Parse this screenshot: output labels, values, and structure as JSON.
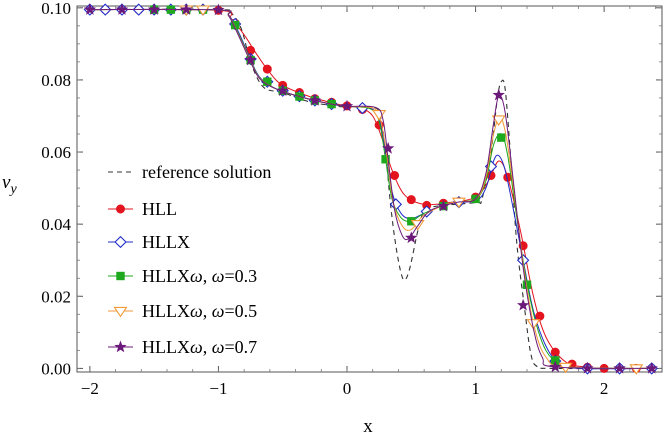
{
  "chart_data": {
    "type": "line",
    "title": "",
    "xlabel": "x",
    "ylabel": "v",
    "ylabel_sub": "y",
    "xlim": [
      -2.1,
      2.45
    ],
    "ylim": [
      -0.001,
      0.1005
    ],
    "xticks": [
      -2,
      -1,
      0,
      1,
      2
    ],
    "xtick_labels": [
      "−2",
      "−1",
      "0",
      "1",
      "2"
    ],
    "yticks": [
      0.0,
      0.02,
      0.04,
      0.06,
      0.08,
      0.1
    ],
    "ytick_labels": [
      "0.00",
      "0.02",
      "0.04",
      "0.06",
      "0.08",
      "0.10"
    ],
    "legend_position": "left",
    "series": [
      {
        "name": "reference solution",
        "color": "#333333",
        "marker": "none",
        "dash": true,
        "points": [
          [
            -2.0,
            0.0995
          ],
          [
            -1.0,
            0.0995
          ],
          [
            -0.9,
            0.0985
          ],
          [
            -0.82,
            0.094
          ],
          [
            -0.75,
            0.085
          ],
          [
            -0.65,
            0.078
          ],
          [
            -0.5,
            0.0765
          ],
          [
            -0.3,
            0.074
          ],
          [
            -0.1,
            0.0728
          ],
          [
            0.0,
            0.0725
          ],
          [
            0.2,
            0.0725
          ],
          [
            0.26,
            0.07
          ],
          [
            0.3,
            0.06
          ],
          [
            0.34,
            0.045
          ],
          [
            0.38,
            0.034
          ],
          [
            0.42,
            0.0265
          ],
          [
            0.45,
            0.0245
          ],
          [
            0.49,
            0.028
          ],
          [
            0.55,
            0.038
          ],
          [
            0.6,
            0.0435
          ],
          [
            0.7,
            0.045
          ],
          [
            1.0,
            0.046
          ],
          [
            1.05,
            0.047
          ],
          [
            1.12,
            0.06
          ],
          [
            1.17,
            0.075
          ],
          [
            1.2,
            0.0795
          ],
          [
            1.23,
            0.0775
          ],
          [
            1.27,
            0.06
          ],
          [
            1.32,
            0.035
          ],
          [
            1.38,
            0.017
          ],
          [
            1.43,
            0.004
          ],
          [
            1.48,
            0.0005
          ],
          [
            1.6,
            0.0
          ],
          [
            2.4,
            0.0
          ]
        ]
      },
      {
        "name": "HLL",
        "color": "#e3141e",
        "marker": "circle",
        "dash": false,
        "points": [
          [
            -2.0,
            0.0995
          ],
          [
            -1.0,
            0.0993
          ],
          [
            -0.9,
            0.097
          ],
          [
            -0.8,
            0.0925
          ],
          [
            -0.7,
            0.087
          ],
          [
            -0.6,
            0.082
          ],
          [
            -0.5,
            0.0785
          ],
          [
            -0.3,
            0.0755
          ],
          [
            -0.1,
            0.0735
          ],
          [
            0.0,
            0.0728
          ],
          [
            0.1,
            0.0722
          ],
          [
            0.2,
            0.07
          ],
          [
            0.28,
            0.063
          ],
          [
            0.35,
            0.055
          ],
          [
            0.45,
            0.048
          ],
          [
            0.6,
            0.0455
          ],
          [
            0.8,
            0.046
          ],
          [
            1.0,
            0.0475
          ],
          [
            1.1,
            0.052
          ],
          [
            1.18,
            0.0575
          ],
          [
            1.25,
            0.053
          ],
          [
            1.35,
            0.038
          ],
          [
            1.45,
            0.02
          ],
          [
            1.55,
            0.0085
          ],
          [
            1.7,
            0.0018
          ],
          [
            1.85,
            0.0004
          ],
          [
            2.0,
            0.0
          ],
          [
            2.4,
            0.0
          ]
        ],
        "markers": [
          [
            -2.0,
            0.0995
          ],
          [
            -1.88,
            0.0995
          ],
          [
            -1.75,
            0.0995
          ],
          [
            -1.62,
            0.0995
          ],
          [
            -1.5,
            0.0995
          ],
          [
            -1.37,
            0.0995
          ],
          [
            -1.25,
            0.0995
          ],
          [
            -1.12,
            0.0995
          ],
          [
            -1.0,
            0.0993
          ],
          [
            -0.87,
            0.0957
          ],
          [
            -0.75,
            0.0882
          ],
          [
            -0.62,
            0.083
          ],
          [
            -0.5,
            0.0785
          ],
          [
            -0.37,
            0.0765
          ],
          [
            -0.25,
            0.0748
          ],
          [
            -0.12,
            0.0738
          ],
          [
            0.0,
            0.0728
          ],
          [
            0.12,
            0.0718
          ],
          [
            0.25,
            0.0675
          ],
          [
            0.37,
            0.0535
          ],
          [
            0.5,
            0.0468
          ],
          [
            0.62,
            0.0452
          ],
          [
            0.75,
            0.0458
          ],
          [
            0.87,
            0.0463
          ],
          [
            1.0,
            0.0475
          ],
          [
            1.12,
            0.0535
          ],
          [
            1.25,
            0.053
          ],
          [
            1.37,
            0.034
          ],
          [
            1.5,
            0.0145
          ],
          [
            1.62,
            0.0045
          ],
          [
            1.75,
            0.0012
          ],
          [
            1.87,
            0.0003
          ],
          [
            2.0,
            0.0
          ],
          [
            2.12,
            0.0
          ],
          [
            2.25,
            0.0
          ],
          [
            2.37,
            0.0
          ]
        ]
      },
      {
        "name": "HLLX",
        "color": "#1f2cc7",
        "marker": "diamond",
        "dash": false,
        "points": [
          [
            -2.0,
            0.0995
          ],
          [
            -1.0,
            0.0994
          ],
          [
            -0.92,
            0.098
          ],
          [
            -0.84,
            0.093
          ],
          [
            -0.76,
            0.0865
          ],
          [
            -0.68,
            0.0808
          ],
          [
            -0.55,
            0.0775
          ],
          [
            -0.35,
            0.0752
          ],
          [
            -0.15,
            0.0735
          ],
          [
            0.0,
            0.0727
          ],
          [
            0.18,
            0.0722
          ],
          [
            0.25,
            0.069
          ],
          [
            0.3,
            0.06
          ],
          [
            0.35,
            0.049
          ],
          [
            0.42,
            0.043
          ],
          [
            0.5,
            0.0415
          ],
          [
            0.6,
            0.043
          ],
          [
            0.8,
            0.0458
          ],
          [
            1.0,
            0.0465
          ],
          [
            1.08,
            0.05
          ],
          [
            1.14,
            0.0575
          ],
          [
            1.18,
            0.059
          ],
          [
            1.23,
            0.055
          ],
          [
            1.3,
            0.043
          ],
          [
            1.37,
            0.03
          ],
          [
            1.45,
            0.016
          ],
          [
            1.55,
            0.006
          ],
          [
            1.65,
            0.0015
          ],
          [
            1.8,
            0.0
          ],
          [
            2.4,
            0.0
          ]
        ],
        "markers": [
          [
            -2.0,
            0.0995
          ],
          [
            -1.88,
            0.0995
          ],
          [
            -1.75,
            0.0995
          ],
          [
            -1.62,
            0.0995
          ],
          [
            -1.5,
            0.0995
          ],
          [
            -1.37,
            0.0995
          ],
          [
            -1.25,
            0.0995
          ],
          [
            -1.12,
            0.0995
          ],
          [
            -0.87,
            0.0955
          ],
          [
            -0.75,
            0.0858
          ],
          [
            -0.62,
            0.0795
          ],
          [
            -0.5,
            0.077
          ],
          [
            -0.37,
            0.0755
          ],
          [
            -0.25,
            0.0743
          ],
          [
            -0.12,
            0.0733
          ],
          [
            0.12,
            0.0722
          ],
          [
            0.38,
            0.0455
          ],
          [
            0.62,
            0.0435
          ],
          [
            0.87,
            0.0461
          ],
          [
            1.12,
            0.056
          ],
          [
            1.37,
            0.03
          ],
          [
            1.62,
            0.002
          ],
          [
            1.87,
            0.0
          ],
          [
            2.12,
            0.0
          ],
          [
            2.37,
            0.0
          ]
        ]
      },
      {
        "name": "HLLXω, ω=0.3",
        "color": "#1da81d",
        "marker": "square",
        "dash": false,
        "points": [
          [
            -2.0,
            0.0995
          ],
          [
            -1.0,
            0.0994
          ],
          [
            -0.92,
            0.0978
          ],
          [
            -0.84,
            0.0925
          ],
          [
            -0.76,
            0.0862
          ],
          [
            -0.68,
            0.0806
          ],
          [
            -0.55,
            0.0775
          ],
          [
            -0.35,
            0.0752
          ],
          [
            -0.15,
            0.0735
          ],
          [
            0.0,
            0.0727
          ],
          [
            0.18,
            0.072
          ],
          [
            0.25,
            0.0685
          ],
          [
            0.3,
            0.058
          ],
          [
            0.35,
            0.047
          ],
          [
            0.42,
            0.0418
          ],
          [
            0.5,
            0.0408
          ],
          [
            0.6,
            0.043
          ],
          [
            0.8,
            0.0458
          ],
          [
            1.0,
            0.047
          ],
          [
            1.08,
            0.052
          ],
          [
            1.14,
            0.062
          ],
          [
            1.2,
            0.065
          ],
          [
            1.25,
            0.059
          ],
          [
            1.32,
            0.042
          ],
          [
            1.4,
            0.0235
          ],
          [
            1.5,
            0.009
          ],
          [
            1.6,
            0.0025
          ],
          [
            1.75,
            0.0003
          ],
          [
            2.4,
            0.0
          ]
        ],
        "markers": [
          [
            -1.5,
            0.0995
          ],
          [
            -1.37,
            0.0995
          ],
          [
            -1.25,
            0.0995
          ],
          [
            -1.12,
            0.0995
          ],
          [
            -0.87,
            0.0952
          ],
          [
            -0.75,
            0.0855
          ],
          [
            -0.62,
            0.0795
          ],
          [
            -0.5,
            0.077
          ],
          [
            -0.37,
            0.0754
          ],
          [
            -0.25,
            0.0743
          ],
          [
            -0.12,
            0.0733
          ],
          [
            0.3,
            0.058
          ],
          [
            0.5,
            0.0408
          ],
          [
            0.75,
            0.045
          ],
          [
            1.0,
            0.047
          ],
          [
            1.2,
            0.064
          ],
          [
            1.4,
            0.0232
          ],
          [
            1.62,
            0.0022
          ]
        ]
      },
      {
        "name": "HLLXω, ω=0.5",
        "color": "#f29a38",
        "marker": "triangle-down",
        "dash": false,
        "points": [
          [
            -2.0,
            0.0995
          ],
          [
            -1.0,
            0.0994
          ],
          [
            -0.92,
            0.0978
          ],
          [
            -0.84,
            0.0922
          ],
          [
            -0.76,
            0.086
          ],
          [
            -0.68,
            0.0805
          ],
          [
            -0.55,
            0.0775
          ],
          [
            -0.35,
            0.0752
          ],
          [
            -0.15,
            0.0735
          ],
          [
            0.0,
            0.0727
          ],
          [
            0.2,
            0.0722
          ],
          [
            0.26,
            0.069
          ],
          [
            0.31,
            0.059
          ],
          [
            0.36,
            0.046
          ],
          [
            0.43,
            0.0395
          ],
          [
            0.5,
            0.0385
          ],
          [
            0.6,
            0.0425
          ],
          [
            0.8,
            0.0458
          ],
          [
            1.0,
            0.047
          ],
          [
            1.08,
            0.053
          ],
          [
            1.14,
            0.065
          ],
          [
            1.19,
            0.0695
          ],
          [
            1.24,
            0.064
          ],
          [
            1.31,
            0.046
          ],
          [
            1.38,
            0.0265
          ],
          [
            1.46,
            0.011
          ],
          [
            1.55,
            0.003
          ],
          [
            1.7,
            0.0004
          ],
          [
            2.4,
            0.0
          ]
        ],
        "markers": [
          [
            -1.25,
            0.0995
          ],
          [
            -1.12,
            0.0995
          ],
          [
            0.25,
            0.0705
          ],
          [
            0.55,
            0.04
          ],
          [
            0.87,
            0.0462
          ],
          [
            1.18,
            0.069
          ],
          [
            1.45,
            0.0125
          ],
          [
            1.7,
            0.0004
          ],
          [
            2.25,
            0.0
          ]
        ]
      },
      {
        "name": "HLLXω, ω=0.7",
        "color": "#6b1a7a",
        "marker": "star",
        "dash": false,
        "points": [
          [
            -2.0,
            0.0995
          ],
          [
            -1.0,
            0.0994
          ],
          [
            -0.92,
            0.0977
          ],
          [
            -0.84,
            0.092
          ],
          [
            -0.76,
            0.0858
          ],
          [
            -0.68,
            0.0804
          ],
          [
            -0.55,
            0.0775
          ],
          [
            -0.35,
            0.0752
          ],
          [
            -0.15,
            0.0735
          ],
          [
            0.0,
            0.0727
          ],
          [
            0.22,
            0.0724
          ],
          [
            0.28,
            0.069
          ],
          [
            0.32,
            0.058
          ],
          [
            0.37,
            0.044
          ],
          [
            0.43,
            0.0368
          ],
          [
            0.48,
            0.036
          ],
          [
            0.55,
            0.0395
          ],
          [
            0.65,
            0.0438
          ],
          [
            0.85,
            0.046
          ],
          [
            1.0,
            0.047
          ],
          [
            1.08,
            0.054
          ],
          [
            1.14,
            0.068
          ],
          [
            1.18,
            0.0755
          ],
          [
            1.23,
            0.071
          ],
          [
            1.3,
            0.05
          ],
          [
            1.37,
            0.028
          ],
          [
            1.45,
            0.011
          ],
          [
            1.52,
            0.003
          ],
          [
            1.62,
            0.0004
          ],
          [
            2.4,
            0.0
          ]
        ],
        "markers": [
          [
            -2.0,
            0.0995
          ],
          [
            -1.75,
            0.0995
          ],
          [
            -1.5,
            0.0995
          ],
          [
            -1.25,
            0.0995
          ],
          [
            -1.0,
            0.0994
          ],
          [
            -0.75,
            0.0855
          ],
          [
            -0.5,
            0.077
          ],
          [
            -0.25,
            0.0743
          ],
          [
            0.0,
            0.0727
          ],
          [
            0.32,
            0.061
          ],
          [
            0.5,
            0.0362
          ],
          [
            0.75,
            0.045
          ],
          [
            1.18,
            0.0758
          ],
          [
            1.37,
            0.0175
          ],
          [
            1.62,
            0.0004
          ],
          [
            1.87,
            0.0
          ],
          [
            2.12,
            0.0
          ],
          [
            2.37,
            0.0
          ]
        ]
      }
    ]
  }
}
